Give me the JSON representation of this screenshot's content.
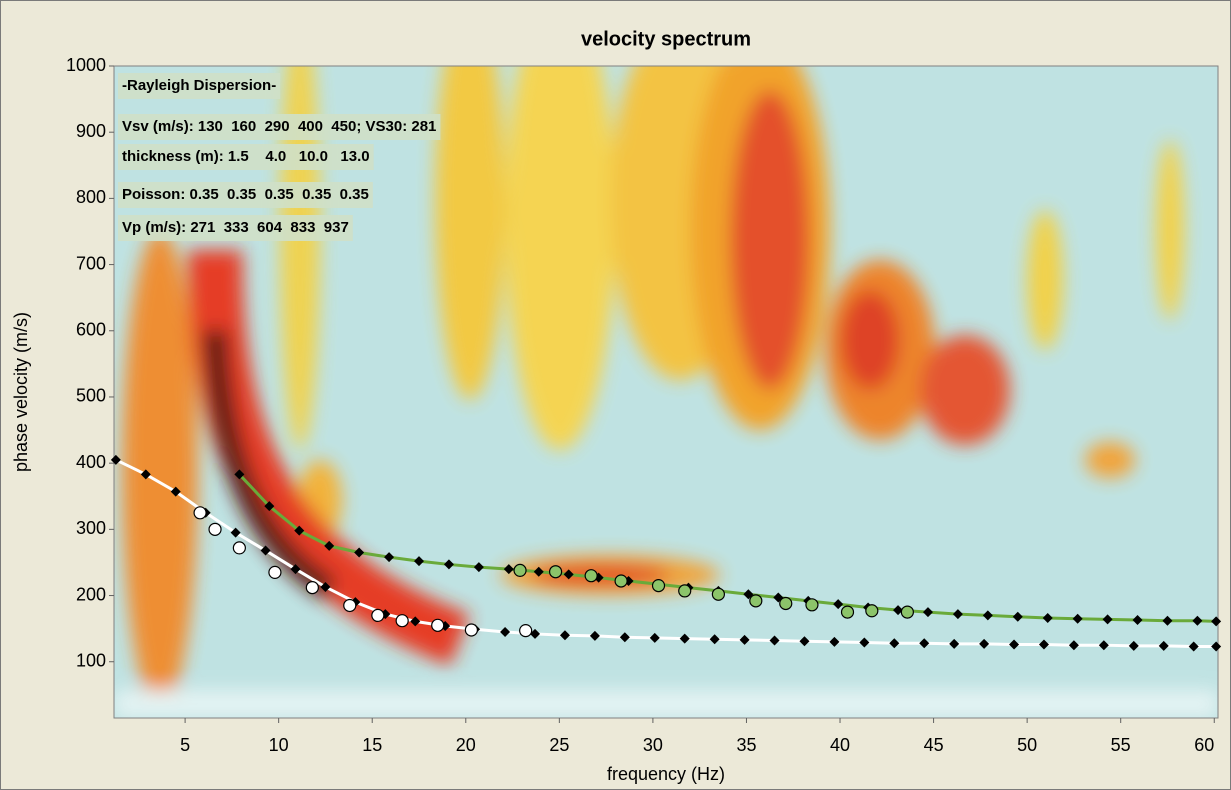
{
  "chart_data": {
    "type": "line",
    "title": "velocity spectrum",
    "xlabel": "frequency (Hz)",
    "ylabel": "phase velocity (m/s)",
    "xlim": [
      1.2,
      60.2
    ],
    "xticks": [
      5,
      10,
      15,
      20,
      25,
      30,
      35,
      40,
      45,
      50,
      55,
      60
    ],
    "ylim": [
      15,
      1000
    ],
    "yticks": [
      100,
      200,
      300,
      400,
      500,
      600,
      700,
      800,
      900,
      1000
    ],
    "annotations": [
      "-Rayleigh Dispersion-",
      "Vsv (m/s): 130  160  290  400  450; VS30: 281",
      "thickness (m): 1.5    4.0   10.0   13.0",
      "Poisson: 0.35  0.35  0.35  0.35  0.35",
      "Vp (m/s): 271  333  604  833  937"
    ],
    "series": [
      {
        "color": "#ffffff",
        "marker_color": "#000000",
        "marker": "diamond",
        "x": [
          1.3,
          2.9,
          4.5,
          6.1,
          7.7,
          9.3,
          10.9,
          12.5,
          14.1,
          15.7,
          17.3,
          18.9,
          20.5,
          22.1,
          23.7,
          25.3,
          26.9,
          28.5,
          30.1,
          31.7,
          33.3,
          34.9,
          36.5,
          38.1,
          39.7,
          41.3,
          42.9,
          44.5,
          46.1,
          47.7,
          49.3,
          50.9,
          52.5,
          54.1,
          55.7,
          57.3,
          58.9,
          60.1
        ],
        "values": [
          405,
          383,
          357,
          325,
          295,
          268,
          240,
          213,
          190,
          172,
          161,
          154,
          149,
          145,
          142,
          140,
          139,
          137,
          136,
          135,
          134,
          133,
          132,
          131,
          130,
          129,
          128,
          128,
          127,
          127,
          126,
          126,
          125,
          125,
          124,
          124,
          123,
          123
        ]
      },
      {
        "color": "#6aaa3a",
        "marker_color": "#000000",
        "marker": "diamond",
        "x": [
          7.9,
          9.5,
          11.1,
          12.7,
          14.3,
          15.9,
          17.5,
          19.1,
          20.7,
          22.3,
          23.9,
          25.5,
          27.1,
          28.7,
          30.3,
          31.9,
          33.5,
          35.1,
          36.7,
          38.3,
          39.9,
          41.5,
          43.1,
          44.7,
          46.3,
          47.9,
          49.5,
          51.1,
          52.7,
          54.3,
          55.9,
          57.5,
          59.1,
          60.1
        ],
        "values": [
          383,
          335,
          298,
          275,
          265,
          258,
          252,
          247,
          243,
          240,
          236,
          232,
          227,
          222,
          217,
          212,
          207,
          202,
          197,
          192,
          187,
          182,
          178,
          175,
          172,
          170,
          168,
          166,
          165,
          164,
          163,
          162,
          162,
          161
        ]
      },
      {
        "color": "#ffffff",
        "marker_color": "#000000",
        "marker": "circle",
        "x": [
          5.8,
          6.6,
          7.9,
          9.8,
          11.8,
          13.8,
          15.3,
          16.6,
          18.5,
          20.3,
          23.2
        ],
        "values": [
          325,
          300,
          272,
          235,
          212,
          185,
          170,
          162,
          155,
          148,
          147
        ]
      },
      {
        "color": "#8cc46a",
        "marker_color": "#000000",
        "marker": "circle",
        "x": [
          22.9,
          24.8,
          26.7,
          28.3,
          30.3,
          31.7,
          33.5,
          35.5,
          37.1,
          38.5,
          40.4,
          41.7,
          43.6
        ],
        "values": [
          238,
          236,
          230,
          222,
          215,
          207,
          202,
          192,
          188,
          186,
          175,
          177,
          175
        ]
      }
    ]
  }
}
